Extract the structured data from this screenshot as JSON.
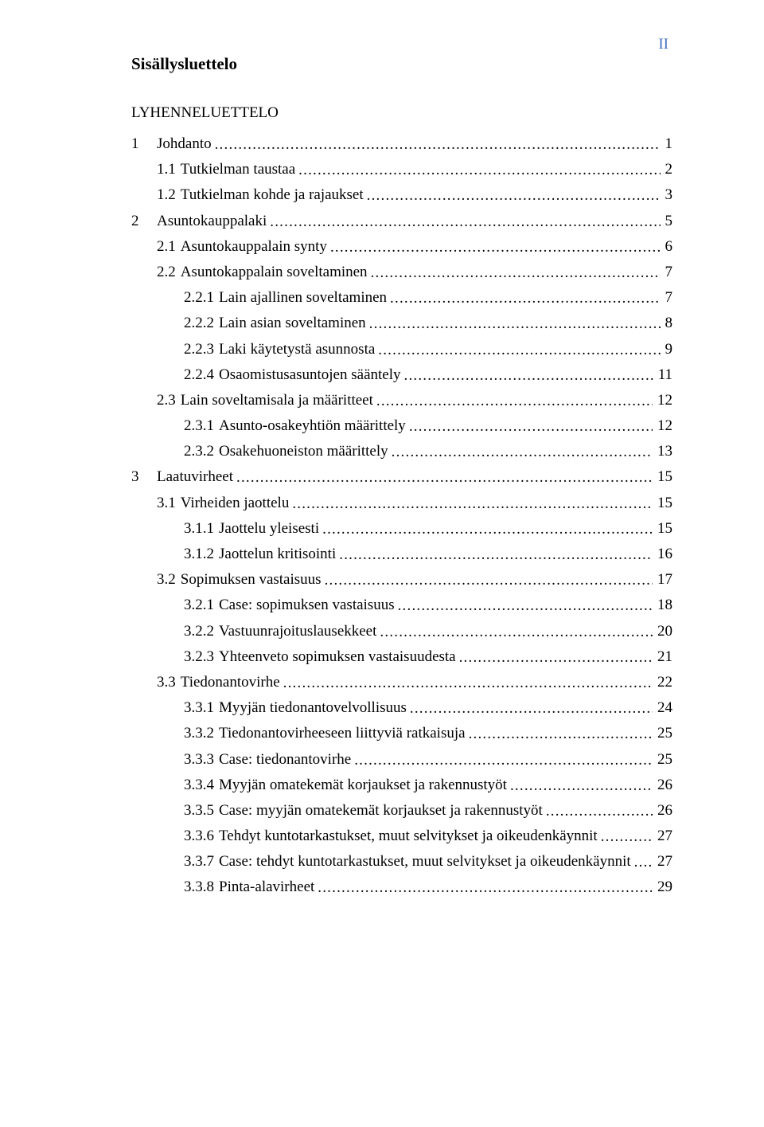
{
  "page_number_label": "II",
  "page_number_color": "#4471c4",
  "heading": "Sisällysluettelo",
  "section_title": "LYHENNELUETTELO",
  "toc": [
    {
      "level": 0,
      "num": "1",
      "text": "Johdanto",
      "page": "1",
      "num_wide": true
    },
    {
      "level": 1,
      "num": "1.1",
      "text": "Tutkielman taustaa",
      "page": "2"
    },
    {
      "level": 1,
      "num": "1.2",
      "text": "Tutkielman kohde ja rajaukset",
      "page": "3"
    },
    {
      "level": 0,
      "num": "2",
      "text": "Asuntokauppalaki",
      "page": "5",
      "num_wide": true
    },
    {
      "level": 1,
      "num": "2.1",
      "text": "Asuntokauppalain synty",
      "page": "6"
    },
    {
      "level": 1,
      "num": "2.2",
      "text": "Asuntokappalain soveltaminen",
      "page": "7"
    },
    {
      "level": 2,
      "num": "2.2.1",
      "text": "Lain ajallinen soveltaminen",
      "page": "7"
    },
    {
      "level": 2,
      "num": "2.2.2",
      "text": "Lain asian soveltaminen",
      "page": "8"
    },
    {
      "level": 2,
      "num": "2.2.3",
      "text": "Laki käytetystä asunnosta",
      "page": "9"
    },
    {
      "level": 2,
      "num": "2.2.4",
      "text": "Osaomistusasuntojen sääntely",
      "page": "11"
    },
    {
      "level": 1,
      "num": "2.3",
      "text": "Lain soveltamisala ja määritteet",
      "page": "12"
    },
    {
      "level": 2,
      "num": "2.3.1",
      "text": "Asunto-osakeyhtiön määrittely",
      "page": "12"
    },
    {
      "level": 2,
      "num": "2.3.2",
      "text": "Osakehuoneiston määrittely",
      "page": "13"
    },
    {
      "level": 0,
      "num": "3",
      "text": "Laatuvirheet",
      "page": "15",
      "num_wide": true
    },
    {
      "level": 1,
      "num": "3.1",
      "text": "Virheiden jaottelu",
      "page": "15"
    },
    {
      "level": 2,
      "num": "3.1.1",
      "text": "Jaottelu yleisesti",
      "page": "15"
    },
    {
      "level": 2,
      "num": "3.1.2",
      "text": "Jaottelun kritisointi",
      "page": "16"
    },
    {
      "level": 1,
      "num": "3.2",
      "text": "Sopimuksen vastaisuus",
      "page": "17"
    },
    {
      "level": 2,
      "num": "3.2.1",
      "text": "Case: sopimuksen vastaisuus",
      "page": "18"
    },
    {
      "level": 2,
      "num": "3.2.2",
      "text": "Vastuunrajoituslausekkeet",
      "page": "20"
    },
    {
      "level": 2,
      "num": "3.2.3",
      "text": "Yhteenveto sopimuksen vastaisuudesta",
      "page": "21"
    },
    {
      "level": 1,
      "num": "3.3",
      "text": "Tiedonantovirhe",
      "page": "22"
    },
    {
      "level": 2,
      "num": "3.3.1",
      "text": "Myyjän tiedonantovelvollisuus",
      "page": "24"
    },
    {
      "level": 2,
      "num": "3.3.2",
      "text": "Tiedonantovirheeseen liittyviä ratkaisuja",
      "page": "25"
    },
    {
      "level": 2,
      "num": "3.3.3",
      "text": "Case: tiedonantovirhe",
      "page": "25"
    },
    {
      "level": 2,
      "num": "3.3.4",
      "text": "Myyjän omatekemät korjaukset ja rakennustyöt",
      "page": "26"
    },
    {
      "level": 2,
      "num": "3.3.5",
      "text": "Case: myyjän omatekemät korjaukset ja rakennustyöt",
      "page": "26"
    },
    {
      "level": 2,
      "num": "3.3.6",
      "text": "Tehdyt kuntotarkastukset, muut selvitykset ja oikeudenkäynnit",
      "page": "27"
    },
    {
      "level": 2,
      "num": "3.3.7",
      "text": "Case: tehdyt kuntotarkastukset, muut selvitykset ja oikeudenkäynnit",
      "page": "27"
    },
    {
      "level": 2,
      "num": "3.3.8",
      "text": "Pinta-alavirheet",
      "page": "29"
    }
  ]
}
